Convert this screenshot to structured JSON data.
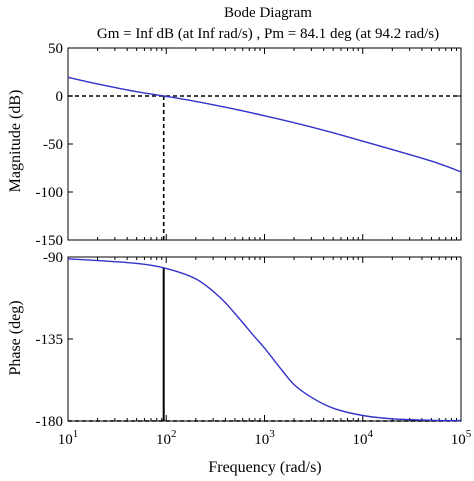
{
  "chart_data": [
    {
      "type": "line",
      "title": "Bode Diagram",
      "subtitle": "Gm = Inf dB (at Inf rad/s) ,  Pm = 84.1 deg (at 94.2 rad/s)",
      "xlabel": "Frequency (rad/s)",
      "ylabel": "Magnitude (dB)",
      "x_scale": "log",
      "xlim": [
        10,
        100000
      ],
      "ylim": [
        -150,
        50
      ],
      "y_ticks": [
        50,
        0,
        -50,
        -100,
        -150
      ],
      "y_tick_labels": [
        "50",
        "0",
        "-50",
        "-100",
        "-150"
      ],
      "line_color": "#3333cc",
      "series": [
        {
          "x": [
            10,
            20,
            50,
            94.2,
            200,
            500,
            1000,
            2000,
            5000,
            10000,
            20000,
            50000,
            100000
          ],
          "values": [
            19.5,
            12.6,
            4.5,
            0,
            -5.6,
            -13.7,
            -20.6,
            -27.8,
            -38.3,
            -47.1,
            -55.8,
            -67.8,
            -79.0
          ]
        }
      ],
      "reference_lines": [
        {
          "axis": "y",
          "value": 0,
          "style": "dashed"
        },
        {
          "axis": "x",
          "value": 94.2,
          "style": "dashed"
        }
      ],
      "grid": false
    },
    {
      "type": "line",
      "xlabel": "Frequency (rad/s)",
      "ylabel": "Phase (deg)",
      "x_scale": "log",
      "xlim": [
        10,
        100000
      ],
      "ylim": [
        -180,
        -90
      ],
      "y_ticks": [
        -90,
        -135,
        -180
      ],
      "y_tick_labels": [
        "-90",
        "-135",
        "-180"
      ],
      "x_ticks": [
        10,
        100,
        1000,
        10000,
        100000
      ],
      "x_tick_labels": [
        {
          "base": "10",
          "exp": "1"
        },
        {
          "base": "10",
          "exp": "2"
        },
        {
          "base": "10",
          "exp": "3"
        },
        {
          "base": "10",
          "exp": "4"
        },
        {
          "base": "10",
          "exp": "5"
        }
      ],
      "line_color": "#3333cc",
      "series": [
        {
          "x": [
            10,
            20,
            50,
            94.2,
            200,
            350,
            500,
            800,
            1000,
            1500,
            2000,
            3000,
            5000,
            10000,
            20000,
            50000,
            100000
          ],
          "values": [
            -91,
            -92,
            -93.5,
            -95.9,
            -102,
            -112,
            -121,
            -134,
            -140,
            -152,
            -160,
            -167,
            -173,
            -177,
            -178.8,
            -179.6,
            -179.8
          ]
        }
      ],
      "reference_lines": [
        {
          "axis": "y",
          "value": -180,
          "style": "dashed"
        },
        {
          "axis": "x",
          "value": 94.2,
          "style": "solid"
        }
      ],
      "grid": false
    }
  ]
}
